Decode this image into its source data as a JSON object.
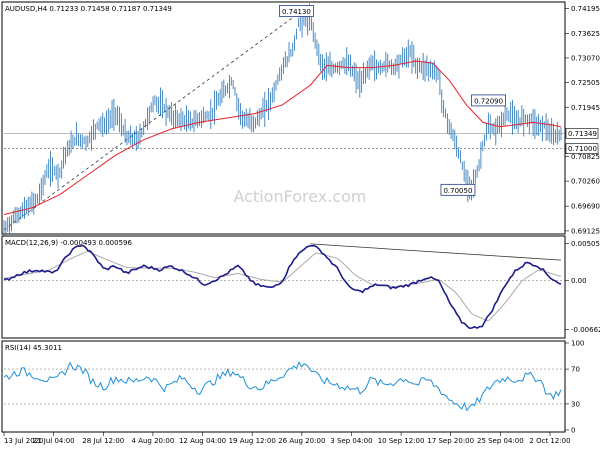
{
  "chart_data": [
    {
      "type": "candlestick",
      "title": "AUDUSD,H4  0.71233 0.71458 0.71187 0.71349",
      "watermark": "ActionForex.com",
      "ylim": [
        0.691,
        0.743
      ],
      "yticks": [
        "0.74195",
        "0.73625",
        "0.73070",
        "0.72505",
        "0.71945",
        "0.71349",
        "0.71000",
        "0.70825",
        "0.70260",
        "0.69690",
        "0.69125"
      ],
      "price_tag": "0.71349",
      "support_tag": "0.71000",
      "annotations": [
        {
          "text": "0.74130",
          "x": 0.525,
          "y": 0.7413
        },
        {
          "text": "0.72090",
          "x": 0.87,
          "y": 0.7209
        },
        {
          "text": "0.70050",
          "x": 0.815,
          "y": 0.7005
        }
      ],
      "close_path": [
        [
          0,
          0.6915
        ],
        [
          0.02,
          0.6945
        ],
        [
          0.04,
          0.6965
        ],
        [
          0.06,
          0.6985
        ],
        [
          0.08,
          0.7055
        ],
        [
          0.1,
          0.7045
        ],
        [
          0.11,
          0.709
        ],
        [
          0.13,
          0.7125
        ],
        [
          0.15,
          0.7115
        ],
        [
          0.17,
          0.716
        ],
        [
          0.18,
          0.715
        ],
        [
          0.2,
          0.7185
        ],
        [
          0.22,
          0.7125
        ],
        [
          0.24,
          0.712
        ],
        [
          0.25,
          0.7145
        ],
        [
          0.27,
          0.721
        ],
        [
          0.29,
          0.719
        ],
        [
          0.3,
          0.7175
        ],
        [
          0.32,
          0.7165
        ],
        [
          0.34,
          0.716
        ],
        [
          0.35,
          0.717
        ],
        [
          0.37,
          0.7175
        ],
        [
          0.39,
          0.722
        ],
        [
          0.41,
          0.7255
        ],
        [
          0.42,
          0.72
        ],
        [
          0.43,
          0.7165
        ],
        [
          0.45,
          0.716
        ],
        [
          0.46,
          0.7175
        ],
        [
          0.48,
          0.7215
        ],
        [
          0.5,
          0.7285
        ],
        [
          0.52,
          0.733
        ],
        [
          0.53,
          0.7395
        ],
        [
          0.55,
          0.739
        ],
        [
          0.56,
          0.7345
        ],
        [
          0.57,
          0.729
        ],
        [
          0.59,
          0.728
        ],
        [
          0.61,
          0.7295
        ],
        [
          0.62,
          0.729
        ],
        [
          0.64,
          0.7245
        ],
        [
          0.66,
          0.73
        ],
        [
          0.67,
          0.728
        ],
        [
          0.69,
          0.7295
        ],
        [
          0.7,
          0.7285
        ],
        [
          0.71,
          0.73
        ],
        [
          0.73,
          0.732
        ],
        [
          0.74,
          0.729
        ],
        [
          0.76,
          0.7285
        ],
        [
          0.78,
          0.727
        ],
        [
          0.79,
          0.7185
        ],
        [
          0.81,
          0.7115
        ],
        [
          0.82,
          0.7075
        ],
        [
          0.83,
          0.7025
        ],
        [
          0.84,
          0.7015
        ],
        [
          0.85,
          0.7045
        ],
        [
          0.86,
          0.711
        ],
        [
          0.87,
          0.715
        ],
        [
          0.88,
          0.714
        ],
        [
          0.89,
          0.7155
        ],
        [
          0.9,
          0.7175
        ],
        [
          0.91,
          0.718
        ],
        [
          0.92,
          0.7155
        ],
        [
          0.93,
          0.717
        ],
        [
          0.95,
          0.7165
        ],
        [
          0.96,
          0.715
        ],
        [
          0.97,
          0.7155
        ],
        [
          0.985,
          0.7125
        ],
        [
          1,
          0.7135
        ]
      ],
      "ma_path": [
        [
          0,
          0.695
        ],
        [
          0.05,
          0.6965
        ],
        [
          0.1,
          0.6995
        ],
        [
          0.15,
          0.704
        ],
        [
          0.2,
          0.7085
        ],
        [
          0.25,
          0.712
        ],
        [
          0.3,
          0.7145
        ],
        [
          0.35,
          0.716
        ],
        [
          0.4,
          0.717
        ],
        [
          0.45,
          0.718
        ],
        [
          0.5,
          0.72
        ],
        [
          0.55,
          0.7245
        ],
        [
          0.58,
          0.729
        ],
        [
          0.62,
          0.7285
        ],
        [
          0.66,
          0.7285
        ],
        [
          0.7,
          0.729
        ],
        [
          0.74,
          0.73
        ],
        [
          0.77,
          0.7295
        ],
        [
          0.8,
          0.7255
        ],
        [
          0.83,
          0.72
        ],
        [
          0.86,
          0.716
        ],
        [
          0.89,
          0.715
        ],
        [
          0.92,
          0.7155
        ],
        [
          0.95,
          0.716
        ],
        [
          0.98,
          0.7155
        ],
        [
          1,
          0.715
        ]
      ],
      "trend_line": [
        [
          0.0,
          0.6915
        ],
        [
          0.53,
          0.741
        ]
      ]
    },
    {
      "type": "line",
      "title": "MACD(12,26,9) -0.000493 0.000596",
      "ylim": [
        -0.0075,
        0.0058
      ],
      "yticks": [
        "0.005052",
        "0.00",
        "-0.006629"
      ],
      "macd": [
        [
          0,
          0.0
        ],
        [
          0.03,
          0.001
        ],
        [
          0.06,
          0.0015
        ],
        [
          0.09,
          0.001
        ],
        [
          0.12,
          0.004
        ],
        [
          0.14,
          0.005
        ],
        [
          0.16,
          0.0035
        ],
        [
          0.18,
          0.0015
        ],
        [
          0.2,
          0.002
        ],
        [
          0.22,
          0.001
        ],
        [
          0.25,
          0.002
        ],
        [
          0.28,
          0.0015
        ],
        [
          0.3,
          0.002
        ],
        [
          0.33,
          0.001
        ],
        [
          0.36,
          -0.0005
        ],
        [
          0.39,
          0.0005
        ],
        [
          0.42,
          0.002
        ],
        [
          0.45,
          -0.0005
        ],
        [
          0.48,
          -0.001
        ],
        [
          0.5,
          0.0
        ],
        [
          0.52,
          0.003
        ],
        [
          0.55,
          0.005
        ],
        [
          0.57,
          0.004
        ],
        [
          0.6,
          0.0015
        ],
        [
          0.62,
          -0.001
        ],
        [
          0.64,
          -0.0015
        ],
        [
          0.67,
          -0.0005
        ],
        [
          0.7,
          -0.001
        ],
        [
          0.73,
          -0.0005
        ],
        [
          0.76,
          0.0005
        ],
        [
          0.78,
          0.0
        ],
        [
          0.8,
          -0.003
        ],
        [
          0.82,
          -0.0055
        ],
        [
          0.84,
          -0.0065
        ],
        [
          0.86,
          -0.006
        ],
        [
          0.88,
          -0.0035
        ],
        [
          0.9,
          -0.0005
        ],
        [
          0.92,
          0.0015
        ],
        [
          0.94,
          0.0025
        ],
        [
          0.96,
          0.002
        ],
        [
          0.98,
          0.0005
        ],
        [
          1,
          -0.0005
        ]
      ],
      "signal": [
        [
          0,
          0.0003
        ],
        [
          0.04,
          0.0009
        ],
        [
          0.08,
          0.0014
        ],
        [
          0.12,
          0.003
        ],
        [
          0.15,
          0.004
        ],
        [
          0.18,
          0.003
        ],
        [
          0.22,
          0.0018
        ],
        [
          0.26,
          0.0017
        ],
        [
          0.3,
          0.0017
        ],
        [
          0.34,
          0.0012
        ],
        [
          0.38,
          0.0004
        ],
        [
          0.42,
          0.001
        ],
        [
          0.46,
          0.0002
        ],
        [
          0.5,
          -0.0002
        ],
        [
          0.53,
          0.0018
        ],
        [
          0.56,
          0.0038
        ],
        [
          0.6,
          0.003
        ],
        [
          0.63,
          0.0008
        ],
        [
          0.66,
          -0.0005
        ],
        [
          0.7,
          -0.0008
        ],
        [
          0.74,
          -0.0004
        ],
        [
          0.78,
          0.0002
        ],
        [
          0.81,
          -0.0015
        ],
        [
          0.84,
          -0.0045
        ],
        [
          0.87,
          -0.0055
        ],
        [
          0.9,
          -0.003
        ],
        [
          0.93,
          0.0
        ],
        [
          0.96,
          0.0015
        ],
        [
          1,
          0.0006
        ]
      ],
      "trend_line": [
        [
          0.55,
          0.005
        ],
        [
          1,
          0.0028
        ]
      ]
    },
    {
      "type": "line",
      "title": "RSI(14) 45.3011",
      "ylim": [
        0,
        100
      ],
      "yticks": [
        "100",
        "70",
        "30",
        "0"
      ],
      "rsi": [
        [
          0,
          60
        ],
        [
          0.03,
          68
        ],
        [
          0.06,
          62
        ],
        [
          0.09,
          55
        ],
        [
          0.12,
          75
        ],
        [
          0.14,
          70
        ],
        [
          0.16,
          55
        ],
        [
          0.18,
          50
        ],
        [
          0.2,
          60
        ],
        [
          0.23,
          55
        ],
        [
          0.26,
          62
        ],
        [
          0.29,
          48
        ],
        [
          0.32,
          60
        ],
        [
          0.35,
          45
        ],
        [
          0.38,
          58
        ],
        [
          0.41,
          68
        ],
        [
          0.44,
          52
        ],
        [
          0.46,
          48
        ],
        [
          0.49,
          60
        ],
        [
          0.52,
          72
        ],
        [
          0.54,
          78
        ],
        [
          0.56,
          62
        ],
        [
          0.58,
          55
        ],
        [
          0.6,
          52
        ],
        [
          0.62,
          48
        ],
        [
          0.64,
          45
        ],
        [
          0.66,
          58
        ],
        [
          0.68,
          52
        ],
        [
          0.7,
          55
        ],
        [
          0.72,
          60
        ],
        [
          0.74,
          52
        ],
        [
          0.76,
          58
        ],
        [
          0.78,
          48
        ],
        [
          0.8,
          35
        ],
        [
          0.82,
          28
        ],
        [
          0.84,
          25
        ],
        [
          0.86,
          40
        ],
        [
          0.88,
          55
        ],
        [
          0.9,
          60
        ],
        [
          0.92,
          58
        ],
        [
          0.94,
          62
        ],
        [
          0.96,
          60
        ],
        [
          0.98,
          38
        ],
        [
          1,
          45
        ]
      ]
    }
  ],
  "x_labels": [
    "13 Jul 2020",
    "21 Jul 04:00",
    "28 Jul 12:00",
    "4 Aug 20:00",
    "12 Aug 04:00",
    "19 Aug 12:00",
    "26 Aug 20:00",
    "3 Sep 04:00",
    "10 Sep 12:00",
    "17 Sep 20:00",
    "25 Sep 04:00",
    "2 Oct 12:00"
  ]
}
